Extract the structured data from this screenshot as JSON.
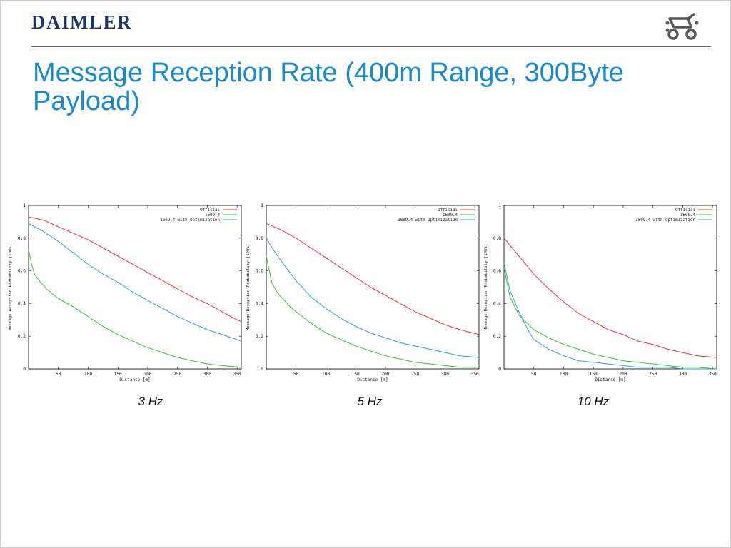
{
  "header": {
    "brand": "DAIMLER",
    "logo_icon": "vehicle-icon"
  },
  "slide": {
    "title": "Message Reception Rate (400m Range, 300Byte Payload)"
  },
  "colors": {
    "brand": "#1c3766",
    "title": "#1a8ac8",
    "official": "#e8393b",
    "std_1609_4": "#3dbf3d",
    "std_1609_4_opt": "#3a9ad9"
  },
  "chart_data": [
    {
      "type": "line",
      "caption": "3 Hz",
      "xlabel": "Distance [m]",
      "ylabel": "Message Reception Probability [100%]",
      "xlim": [
        0,
        357
      ],
      "ylim": [
        0,
        1
      ],
      "xticks": [
        50,
        100,
        150,
        200,
        250,
        300,
        350
      ],
      "yticks": [
        "0",
        "0.2",
        "0.4",
        "0.6",
        "0.8",
        "1"
      ],
      "legend": "top-right",
      "grid": false,
      "series": [
        {
          "name": "Official",
          "color": "#e8393b",
          "x": [
            0,
            25,
            50,
            75,
            100,
            125,
            150,
            175,
            200,
            225,
            250,
            275,
            300,
            325,
            350,
            357
          ],
          "y": [
            0.93,
            0.91,
            0.87,
            0.83,
            0.79,
            0.74,
            0.69,
            0.64,
            0.59,
            0.54,
            0.49,
            0.44,
            0.4,
            0.35,
            0.3,
            0.29
          ]
        },
        {
          "name": "1609.4",
          "color": "#3dbf3d",
          "x": [
            0,
            5,
            10,
            20,
            30,
            40,
            50,
            75,
            100,
            125,
            150,
            175,
            200,
            225,
            250,
            275,
            300,
            325,
            357
          ],
          "y": [
            0.73,
            0.64,
            0.58,
            0.53,
            0.49,
            0.46,
            0.43,
            0.38,
            0.32,
            0.26,
            0.21,
            0.17,
            0.13,
            0.1,
            0.07,
            0.05,
            0.03,
            0.02,
            0.01
          ]
        },
        {
          "name": "1609.4 with Optimization",
          "color": "#3a9ad9",
          "x": [
            0,
            25,
            50,
            75,
            100,
            125,
            150,
            175,
            200,
            225,
            250,
            275,
            300,
            325,
            357
          ],
          "y": [
            0.89,
            0.84,
            0.78,
            0.71,
            0.64,
            0.58,
            0.53,
            0.47,
            0.42,
            0.37,
            0.32,
            0.28,
            0.24,
            0.21,
            0.17
          ]
        }
      ]
    },
    {
      "type": "line",
      "caption": "5 Hz",
      "xlabel": "Distance [m]",
      "ylabel": "Message Reception Probability [100%]",
      "xlim": [
        0,
        357
      ],
      "ylim": [
        0,
        1
      ],
      "xticks": [
        50,
        100,
        150,
        200,
        250,
        300,
        350
      ],
      "yticks": [
        "0",
        "0.2",
        "0.4",
        "0.6",
        "0.8",
        "1"
      ],
      "legend": "top-right",
      "grid": false,
      "series": [
        {
          "name": "Official",
          "color": "#e8393b",
          "x": [
            0,
            25,
            50,
            75,
            100,
            125,
            150,
            175,
            200,
            225,
            250,
            275,
            300,
            325,
            357
          ],
          "y": [
            0.89,
            0.85,
            0.8,
            0.74,
            0.68,
            0.62,
            0.56,
            0.5,
            0.45,
            0.4,
            0.35,
            0.31,
            0.27,
            0.24,
            0.21
          ]
        },
        {
          "name": "1609.4",
          "color": "#3dbf3d",
          "x": [
            0,
            5,
            10,
            20,
            30,
            40,
            50,
            75,
            100,
            125,
            150,
            175,
            200,
            225,
            250,
            275,
            300,
            325,
            357
          ],
          "y": [
            0.69,
            0.6,
            0.52,
            0.46,
            0.42,
            0.38,
            0.35,
            0.28,
            0.22,
            0.18,
            0.14,
            0.11,
            0.08,
            0.06,
            0.04,
            0.03,
            0.02,
            0.01,
            0.01
          ]
        },
        {
          "name": "1609.4 with Optimization",
          "color": "#3a9ad9",
          "x": [
            0,
            10,
            25,
            50,
            75,
            100,
            125,
            150,
            175,
            200,
            225,
            250,
            275,
            300,
            325,
            357
          ],
          "y": [
            0.8,
            0.74,
            0.66,
            0.54,
            0.44,
            0.37,
            0.31,
            0.26,
            0.22,
            0.19,
            0.16,
            0.14,
            0.12,
            0.1,
            0.08,
            0.07
          ]
        }
      ]
    },
    {
      "type": "line",
      "caption": "10 Hz",
      "xlabel": "Distance [m]",
      "ylabel": "Message Reception Probability [100%]",
      "xlim": [
        0,
        357
      ],
      "ylim": [
        0,
        1
      ],
      "xticks": [
        50,
        100,
        150,
        200,
        250,
        300,
        350
      ],
      "yticks": [
        "0",
        "0.2",
        "0.4",
        "0.6",
        "0.8",
        "1"
      ],
      "legend": "top-right",
      "grid": false,
      "series": [
        {
          "name": "Official",
          "color": "#e8393b",
          "x": [
            0,
            25,
            50,
            75,
            100,
            125,
            150,
            175,
            200,
            225,
            250,
            275,
            300,
            325,
            357
          ],
          "y": [
            0.8,
            0.69,
            0.58,
            0.49,
            0.41,
            0.34,
            0.29,
            0.24,
            0.21,
            0.17,
            0.15,
            0.12,
            0.1,
            0.08,
            0.07
          ]
        },
        {
          "name": "1609.4",
          "color": "#3dbf3d",
          "x": [
            0,
            10,
            25,
            50,
            75,
            100,
            125,
            150,
            175,
            200,
            225,
            250,
            275,
            300,
            325,
            357
          ],
          "y": [
            0.62,
            0.44,
            0.33,
            0.24,
            0.19,
            0.15,
            0.12,
            0.09,
            0.07,
            0.05,
            0.04,
            0.03,
            0.02,
            0.01,
            0.01,
            0.0
          ]
        },
        {
          "name": "1609.4 with Optimization",
          "color": "#3a9ad9",
          "x": [
            0,
            10,
            25,
            40,
            50,
            75,
            100,
            125,
            150,
            175,
            200,
            225,
            250,
            275,
            300,
            325,
            357
          ],
          "y": [
            0.65,
            0.48,
            0.35,
            0.24,
            0.18,
            0.12,
            0.08,
            0.05,
            0.04,
            0.03,
            0.02,
            0.01,
            0.01,
            0.01,
            0.0,
            0.0,
            0.0
          ]
        }
      ]
    }
  ]
}
